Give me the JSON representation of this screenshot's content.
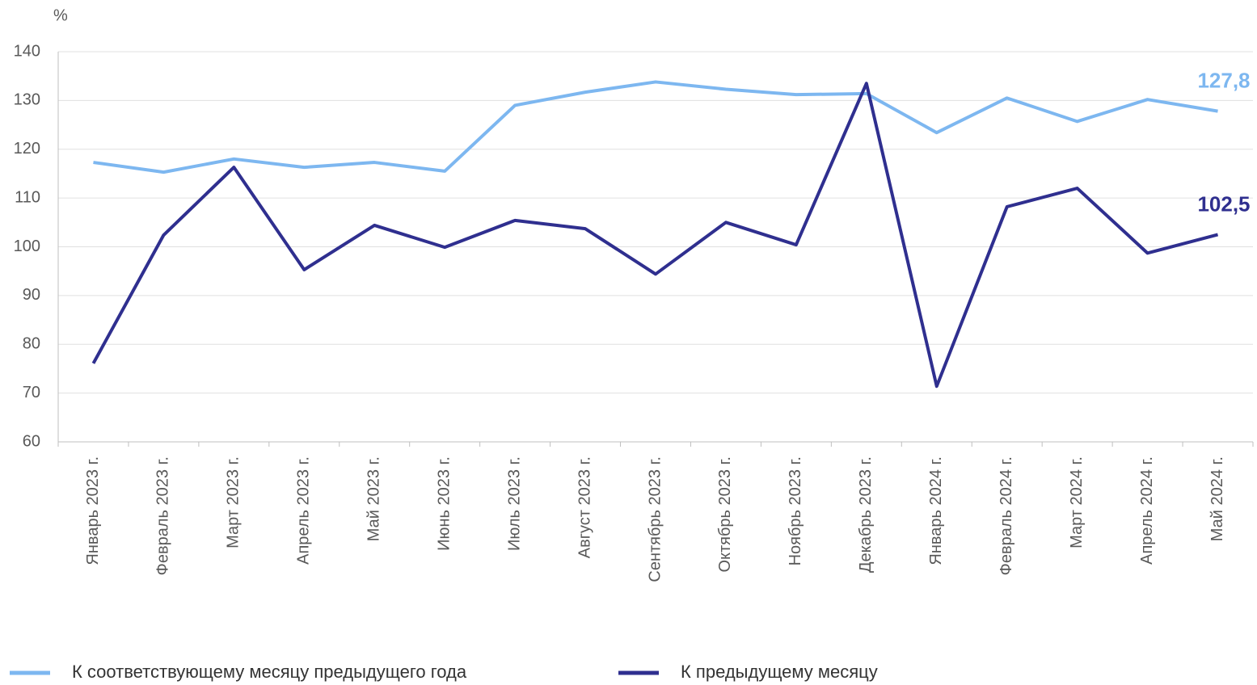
{
  "chart_data": {
    "type": "line",
    "y_label": "%",
    "categories": [
      "Январь 2023 г.",
      "Февраль 2023 г.",
      "Март 2023 г.",
      "Апрель 2023 г.",
      "Май 2023 г.",
      "Июнь 2023 г.",
      "Июль 2023 г.",
      "Август 2023 г.",
      "Сентябрь 2023 г.",
      "Октябрь 2023 г.",
      "Ноябрь 2023 г.",
      "Декабрь 2023 г.",
      "Январь 2024 г.",
      "Февраль 2024 г.",
      "Март 2024 г.",
      "Апрель 2024 г.",
      "Май 2024 г."
    ],
    "series": [
      {
        "name": "К соответствующему месяцу предыдущего года",
        "color": "#7db7f0",
        "values": [
          117.3,
          115.3,
          118.0,
          116.3,
          117.3,
          115.5,
          129.0,
          131.7,
          133.8,
          132.3,
          131.2,
          131.4,
          123.4,
          130.5,
          125.7,
          130.2,
          127.8
        ],
        "value_labels": [
          null,
          null,
          null,
          null,
          null,
          null,
          null,
          null,
          null,
          null,
          null,
          null,
          null,
          null,
          null,
          null,
          "127,8"
        ]
      },
      {
        "name": "К предыдущему месяцу",
        "color": "#2f2f8f",
        "values": [
          76.1,
          102.4,
          116.3,
          95.3,
          104.4,
          99.9,
          105.4,
          103.7,
          94.4,
          105.0,
          100.4,
          133.5,
          71.4,
          108.2,
          112.0,
          98.7,
          102.5
        ],
        "value_labels": [
          null,
          null,
          null,
          null,
          null,
          null,
          null,
          null,
          null,
          null,
          null,
          null,
          null,
          null,
          null,
          null,
          "102,5"
        ]
      }
    ],
    "ylim": [
      60,
      140
    ],
    "yticks": [
      60,
      70,
      80,
      90,
      100,
      110,
      120,
      130,
      140
    ],
    "grid": true,
    "legend": "bottom"
  }
}
